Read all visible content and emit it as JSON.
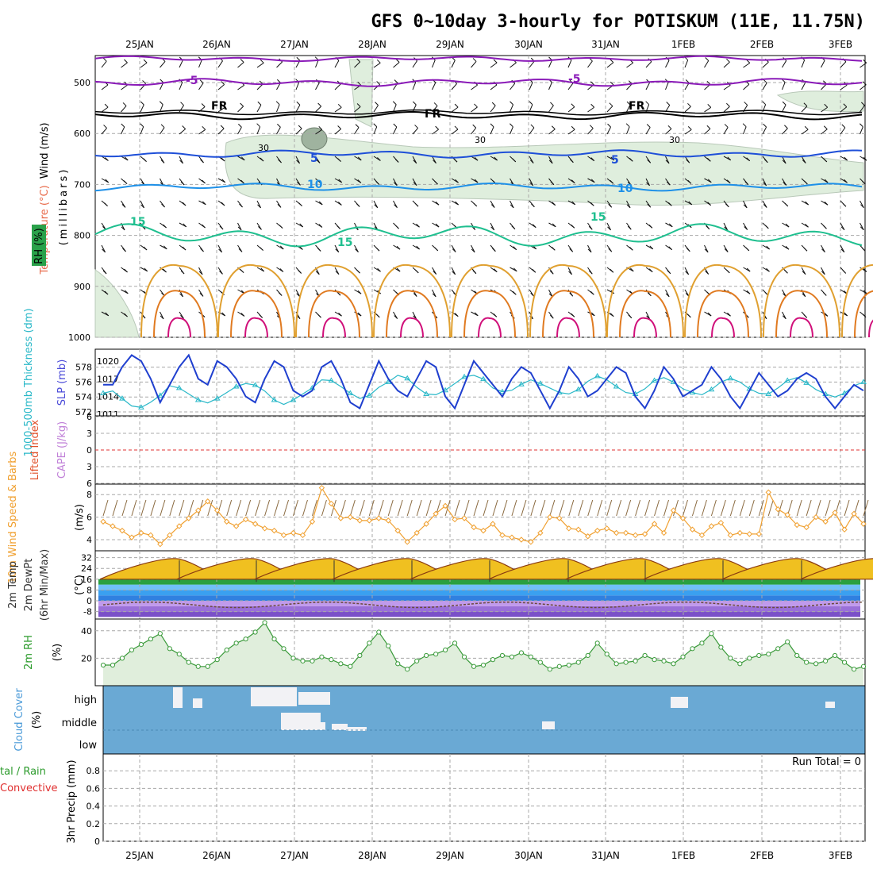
{
  "title": "GFS 0~10day 3-hourly for POTISKUM (11E, 11.75N)",
  "dates": [
    "25JAN",
    "26JAN",
    "27JAN",
    "28JAN",
    "29JAN",
    "30JAN",
    "31JAN",
    "1FEB",
    "2FEB",
    "3FEB"
  ],
  "colors": {
    "grid": "#a8a8a8",
    "temp_neg5": "#8a1ab8",
    "temp_fr": "#000000",
    "temp_5": "#1e4fd8",
    "temp_10": "#1e90e8",
    "temp_15": "#1fbf8f",
    "humid": "#dfeedd",
    "slp": "#1f3fcf",
    "thickness": "#29b8c8",
    "wind10m": "#f0a030",
    "rh2m": "#3a9a3a",
    "cloud_bg": "#6aa9d4",
    "cloud_fill": "#f2f2f5",
    "zero_line": "#e03030"
  },
  "panel_labels": {
    "upper_wind": "Wind (m/s)",
    "upper_temp": "Temperature (°C)",
    "upper_rh": "RH (%)",
    "upper_unit": "(millibars)",
    "thickness": "1000-500mb Thickness (dm)",
    "slp": "SLP (mb)",
    "lifted": "Lifted Index",
    "cape": "CAPE (J/kg)",
    "wind10": "10m Wind Speed & Barbs",
    "wind10_unit": "(m/s)",
    "temp2m": "2m Temp",
    "dew2m": "2m DewPt",
    "minmax": "(6hr Min/Max)",
    "temp_unit": "(°C)",
    "rh2m": "2m RH",
    "rh_unit": "(%)",
    "cloud": "Cloud Cover",
    "cloud_unit": "(%)",
    "precip_total": "tal / Rain",
    "precip_conv": "Convective",
    "precip_y": "3hr Precip (mm)",
    "run_total": "Run Total = 0"
  },
  "contour_labels": {
    "neg5": "-5",
    "fr": "FR",
    "five": "5",
    "ten": "10",
    "fifteen": "15",
    "thirty": "30"
  },
  "cloud_levels": [
    "high",
    "middle",
    "low"
  ],
  "chart_data": [
    {
      "type": "line",
      "name": "upper-air pressure-level section",
      "ylabel": "(millibars)",
      "y_ticks": [
        500,
        600,
        700,
        800,
        900,
        1000
      ],
      "isotherms": [
        {
          "label": "-5",
          "level_mb": 500
        },
        {
          "label": "FR",
          "level_mb": 565
        },
        {
          "label": "5",
          "level_mb": 640
        },
        {
          "label": "10",
          "level_mb": 705
        },
        {
          "label": "15",
          "level_mb": 800
        }
      ]
    },
    {
      "type": "line",
      "name": "thickness/slp",
      "y_left_ticks": [
        572,
        574,
        576,
        578
      ],
      "y_right_ticks": [
        1011,
        1014,
        1017,
        1020
      ],
      "slp": [
        1016,
        1016,
        1019,
        1021,
        1020,
        1017,
        1013,
        1016,
        1019,
        1021,
        1017,
        1016,
        1020,
        1019,
        1017,
        1014,
        1013,
        1017,
        1020,
        1019,
        1015,
        1014,
        1015,
        1019,
        1020,
        1017,
        1013,
        1012,
        1016,
        1020,
        1017,
        1015,
        1014,
        1017,
        1020,
        1019,
        1014,
        1012,
        1016,
        1020,
        1018,
        1016,
        1014,
        1017,
        1019,
        1018,
        1015,
        1012,
        1015,
        1019,
        1017,
        1014,
        1015,
        1017,
        1019,
        1018,
        1014,
        1012,
        1015,
        1019,
        1017,
        1014,
        1015,
        1016,
        1019,
        1017,
        1014,
        1012,
        1015,
        1018,
        1016,
        1014,
        1015,
        1017,
        1018,
        1017,
        1014,
        1012,
        1014,
        1016,
        1015
      ],
      "thickness": [
        574.5,
        574.8,
        573.8,
        572.8,
        572.6,
        573.3,
        574.2,
        575.5,
        575.2,
        574.4,
        573.6,
        573.2,
        573.8,
        574.6,
        575.4,
        575.8,
        575.6,
        574.8,
        573.6,
        573.0,
        573.6,
        574.4,
        575.2,
        576.3,
        576.2,
        575.4,
        574.5,
        573.8,
        574.2,
        575.3,
        576.0,
        576.9,
        576.5,
        575.3,
        574.4,
        574.3,
        574.9,
        575.8,
        576.7,
        576.9,
        576.4,
        575.2,
        574.7,
        574.9,
        575.7,
        576.3,
        575.8,
        575.2,
        574.6,
        574.4,
        575.0,
        576.1,
        576.8,
        576.3,
        575.4,
        574.6,
        574.4,
        575.1,
        576.2,
        576.6,
        576.0,
        575.1,
        574.6,
        574.3,
        575.0,
        576.0,
        576.5,
        576.0,
        575.1,
        574.5,
        574.4,
        575.2,
        576.2,
        576.6,
        575.9,
        575.0,
        574.4,
        574.0,
        574.5,
        575.5,
        576.0
      ]
    },
    {
      "type": "line",
      "name": "lifted-index/cape",
      "y_ticks": [
        -6,
        -3,
        0,
        3,
        6
      ],
      "values": []
    },
    {
      "type": "line",
      "name": "10m wind speed",
      "ylabel": "(m/s)",
      "y_ticks": [
        4,
        6,
        8
      ],
      "values": [
        5.6,
        5.2,
        4.8,
        4.2,
        4.6,
        4.4,
        3.6,
        4.4,
        5.2,
        5.9,
        6.6,
        7.4,
        6.6,
        5.6,
        5.2,
        5.8,
        5.4,
        5.0,
        4.8,
        4.4,
        4.6,
        4.4,
        5.6,
        8.6,
        7.2,
        5.9,
        6.0,
        5.7,
        5.7,
        5.9,
        5.7,
        4.8,
        3.8,
        4.6,
        5.4,
        6.3,
        7.0,
        5.8,
        5.9,
        5.1,
        4.8,
        5.4,
        4.4,
        4.2,
        4.0,
        3.8,
        4.6,
        6.0,
        5.9,
        5.0,
        4.9,
        4.3,
        4.8,
        5.0,
        4.6,
        4.6,
        4.4,
        4.5,
        5.4,
        4.6,
        6.6,
        5.9,
        4.9,
        4.4,
        5.2,
        5.5,
        4.4,
        4.6,
        4.5,
        4.5,
        8.2,
        6.7,
        6.2,
        5.3,
        5.1,
        6.0,
        5.6,
        6.4,
        4.9,
        6.3,
        5.4
      ]
    },
    {
      "type": "area",
      "name": "2m temperature/dewpoint",
      "ylabel": "(°C)",
      "y_ticks": [
        -8,
        0,
        8,
        16,
        24,
        32
      ],
      "temp_max": [
        32,
        32,
        32,
        32,
        32,
        32,
        32,
        32,
        32,
        32
      ],
      "temp_min": [
        15,
        15,
        15,
        15,
        15,
        15,
        15,
        15,
        15,
        15
      ]
    },
    {
      "type": "area",
      "name": "2m relative humidity",
      "ylabel": "(%)",
      "y_ticks": [
        20,
        40
      ],
      "values": [
        15,
        15,
        20,
        26,
        30,
        34,
        38,
        27,
        23,
        17,
        14,
        14,
        19,
        26,
        31,
        34,
        39,
        46,
        34,
        27,
        20,
        18,
        18,
        21,
        19,
        16,
        14,
        22,
        31,
        39,
        29,
        16,
        12,
        18,
        22,
        23,
        26,
        31,
        21,
        14,
        15,
        19,
        22,
        21,
        24,
        21,
        17,
        12,
        14,
        15,
        17,
        22,
        31,
        23,
        16,
        17,
        18,
        22,
        19,
        18,
        16,
        21,
        27,
        31,
        38,
        28,
        20,
        16,
        20,
        22,
        23,
        27,
        32,
        22,
        17,
        16,
        18,
        22,
        17,
        12,
        14
      ]
    },
    {
      "type": "bar",
      "name": "cloud cover",
      "categories": [
        "high",
        "middle",
        "low"
      ]
    },
    {
      "type": "bar",
      "name": "3hr precip",
      "ylabel": "3hr Precip (mm)",
      "y_ticks": [
        0,
        0.2,
        0.4,
        0.6,
        0.8
      ],
      "values": []
    }
  ]
}
